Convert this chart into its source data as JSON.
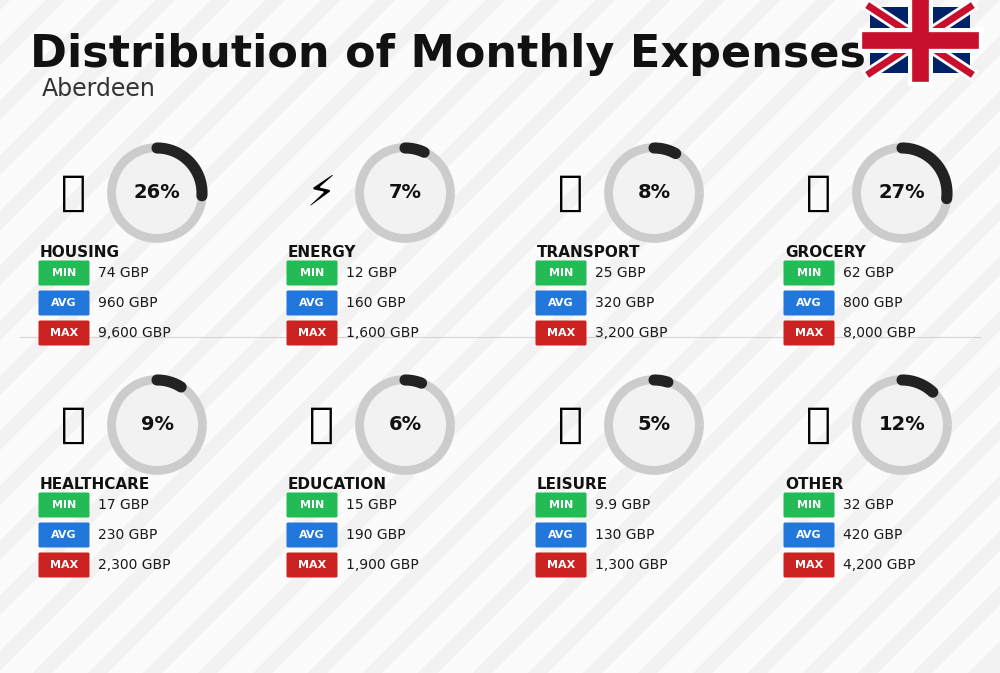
{
  "title": "Distribution of Monthly Expenses",
  "subtitle": "Aberdeen",
  "bg_color": "#f2f2f2",
  "categories": [
    {
      "name": "HOUSING",
      "percent": 26,
      "min_val": "74 GBP",
      "avg_val": "960 GBP",
      "max_val": "9,600 GBP",
      "row": 0,
      "col": 0
    },
    {
      "name": "ENERGY",
      "percent": 7,
      "min_val": "12 GBP",
      "avg_val": "160 GBP",
      "max_val": "1,600 GBP",
      "row": 0,
      "col": 1
    },
    {
      "name": "TRANSPORT",
      "percent": 8,
      "min_val": "25 GBP",
      "avg_val": "320 GBP",
      "max_val": "3,200 GBP",
      "row": 0,
      "col": 2
    },
    {
      "name": "GROCERY",
      "percent": 27,
      "min_val": "62 GBP",
      "avg_val": "800 GBP",
      "max_val": "8,000 GBP",
      "row": 0,
      "col": 3
    },
    {
      "name": "HEALTHCARE",
      "percent": 9,
      "min_val": "17 GBP",
      "avg_val": "230 GBP",
      "max_val": "2,300 GBP",
      "row": 1,
      "col": 0
    },
    {
      "name": "EDUCATION",
      "percent": 6,
      "min_val": "15 GBP",
      "avg_val": "190 GBP",
      "max_val": "1,900 GBP",
      "row": 1,
      "col": 1
    },
    {
      "name": "LEISURE",
      "percent": 5,
      "min_val": "9.9 GBP",
      "avg_val": "130 GBP",
      "max_val": "1,300 GBP",
      "row": 1,
      "col": 2
    },
    {
      "name": "OTHER",
      "percent": 12,
      "min_val": "32 GBP",
      "avg_val": "420 GBP",
      "max_val": "4,200 GBP",
      "row": 1,
      "col": 3
    }
  ],
  "min_color": "#22bb55",
  "avg_color": "#2277dd",
  "max_color": "#cc2222",
  "value_text_color": "#1a1a1a",
  "category_name_color": "#111111",
  "percent_color": "#111111",
  "arc_dark_color": "#222222",
  "arc_light_color": "#cccccc",
  "stripe_color": "#ffffff",
  "flag_blue": "#012169",
  "flag_red": "#C8102E"
}
